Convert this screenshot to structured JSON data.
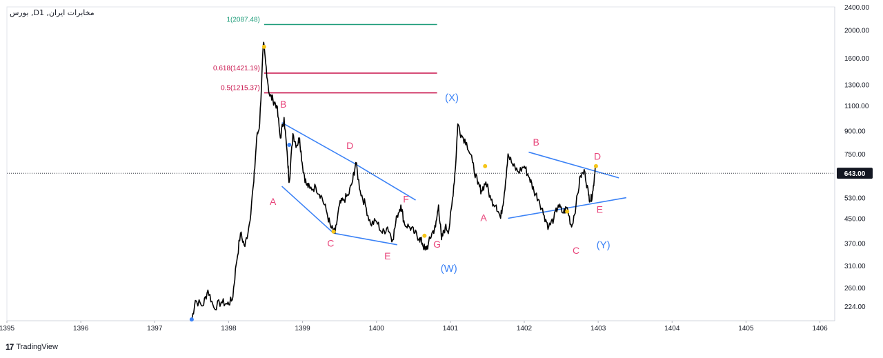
{
  "header": {
    "title": "بورس ,Dمخابرات ایران, 1"
  },
  "brand": {
    "logo": "17",
    "name": "TradingView"
  },
  "colors": {
    "price_line": "#000000",
    "trendline": "#3b82f6",
    "wave_label": "#e8447a",
    "degree_label": "#3b82f6",
    "fib_1": "#1f9d7a",
    "fib_other": "#c8104a",
    "marker": "#f5c518",
    "current_price_bg": "#131722"
  },
  "chart_data": {
    "type": "line",
    "title": "",
    "xlabel": "",
    "ylabel": "",
    "y_scale": "log",
    "ylim": [
      200,
      2400
    ],
    "xlim": [
      1395,
      1406.2
    ],
    "x_ticks": [
      "1395",
      "1396",
      "1397",
      "1398",
      "1399",
      "1400",
      "1401",
      "1402",
      "1403",
      "1404",
      "1405",
      "1406"
    ],
    "y_ticks": [
      "2400.00",
      "2000.00",
      "1600.00",
      "1300.00",
      "1100.00",
      "900.00",
      "750.00",
      "630.00",
      "530.00",
      "450.00",
      "370.00",
      "310.00",
      "260.00",
      "224.00"
    ],
    "current_price": {
      "value": 643,
      "label": "643.00"
    },
    "series": [
      {
        "points": [
          [
            1397.5,
            200
          ],
          [
            1397.55,
            235
          ],
          [
            1397.65,
            225
          ],
          [
            1397.72,
            255
          ],
          [
            1397.8,
            222
          ],
          [
            1397.9,
            232
          ],
          [
            1397.98,
            228
          ],
          [
            1398.05,
            236
          ],
          [
            1398.1,
            310
          ],
          [
            1398.16,
            400
          ],
          [
            1398.22,
            360
          ],
          [
            1398.28,
            430
          ],
          [
            1398.34,
            600
          ],
          [
            1398.38,
            850
          ],
          [
            1398.42,
            950
          ],
          [
            1398.47,
            1800
          ],
          [
            1398.5,
            1550
          ],
          [
            1398.55,
            1200
          ],
          [
            1398.6,
            1150
          ],
          [
            1398.65,
            1100
          ],
          [
            1398.7,
            850
          ],
          [
            1398.75,
            1000
          ],
          [
            1398.8,
            700
          ],
          [
            1398.82,
            600
          ],
          [
            1398.87,
            880
          ],
          [
            1398.92,
            800
          ],
          [
            1398.96,
            850
          ],
          [
            1399.0,
            680
          ],
          [
            1399.05,
            590
          ],
          [
            1399.1,
            570
          ],
          [
            1399.18,
            575
          ],
          [
            1399.25,
            540
          ],
          [
            1399.32,
            480
          ],
          [
            1399.38,
            420
          ],
          [
            1399.44,
            400
          ],
          [
            1399.5,
            500
          ],
          [
            1399.55,
            520
          ],
          [
            1399.62,
            540
          ],
          [
            1399.68,
            610
          ],
          [
            1399.72,
            700
          ],
          [
            1399.78,
            560
          ],
          [
            1399.85,
            500
          ],
          [
            1399.92,
            430
          ],
          [
            1400.0,
            440
          ],
          [
            1400.08,
            400
          ],
          [
            1400.15,
            420
          ],
          [
            1400.22,
            380
          ],
          [
            1400.28,
            460
          ],
          [
            1400.33,
            500
          ],
          [
            1400.38,
            430
          ],
          [
            1400.45,
            420
          ],
          [
            1400.52,
            400
          ],
          [
            1400.58,
            385
          ],
          [
            1400.62,
            370
          ],
          [
            1400.66,
            350
          ],
          [
            1400.7,
            365
          ],
          [
            1400.75,
            400
          ],
          [
            1400.8,
            420
          ],
          [
            1400.84,
            500
          ],
          [
            1400.88,
            380
          ],
          [
            1400.93,
            420
          ],
          [
            1400.98,
            410
          ],
          [
            1401.02,
            500
          ],
          [
            1401.07,
            680
          ],
          [
            1401.1,
            950
          ],
          [
            1401.15,
            870
          ],
          [
            1401.22,
            820
          ],
          [
            1401.3,
            700
          ],
          [
            1401.37,
            590
          ],
          [
            1401.42,
            560
          ],
          [
            1401.48,
            600
          ],
          [
            1401.55,
            520
          ],
          [
            1401.62,
            500
          ],
          [
            1401.68,
            450
          ],
          [
            1401.73,
            550
          ],
          [
            1401.78,
            750
          ],
          [
            1401.85,
            680
          ],
          [
            1401.92,
            650
          ],
          [
            1402.0,
            680
          ],
          [
            1402.07,
            620
          ],
          [
            1402.13,
            560
          ],
          [
            1402.2,
            520
          ],
          [
            1402.27,
            460
          ],
          [
            1402.33,
            420
          ],
          [
            1402.4,
            450
          ],
          [
            1402.46,
            500
          ],
          [
            1402.52,
            470
          ],
          [
            1402.58,
            490
          ],
          [
            1402.64,
            420
          ],
          [
            1402.7,
            500
          ],
          [
            1402.76,
            630
          ],
          [
            1402.82,
            650
          ],
          [
            1402.87,
            540
          ],
          [
            1402.9,
            520
          ],
          [
            1402.93,
            560
          ],
          [
            1402.96,
            680
          ]
        ]
      }
    ],
    "trendlines": [
      {
        "from": [
          1398.72,
          960
        ],
        "to": [
          1399.68,
          700
        ]
      },
      {
        "from": [
          1399.68,
          700
        ],
        "to": [
          1400.53,
          520
        ]
      },
      {
        "from": [
          1398.72,
          580
        ],
        "to": [
          1399.42,
          400
        ]
      },
      {
        "from": [
          1399.42,
          400
        ],
        "to": [
          1400.28,
          365
        ]
      },
      {
        "from": [
          1402.06,
          760
        ],
        "to": [
          1403.28,
          620
        ]
      },
      {
        "from": [
          1401.78,
          450
        ],
        "to": [
          1403.38,
          530
        ]
      }
    ],
    "fib_levels": [
      {
        "label": "1(2087.48)",
        "value": 2087.48,
        "x1": 1398.48,
        "x2": 1400.82,
        "color_key": "fib_1"
      },
      {
        "label": "0.618(1421.19)",
        "value": 1421.19,
        "x1": 1398.48,
        "x2": 1400.82,
        "color_key": "fib_other"
      },
      {
        "label": "0.5(1215.37)",
        "value": 1215.37,
        "x1": 1398.48,
        "x2": 1400.82,
        "color_key": "fib_other"
      }
    ],
    "wave_labels": [
      {
        "text": "B",
        "x": 1398.74,
        "y": 1080
      },
      {
        "text": "A",
        "x": 1398.6,
        "y": 500
      },
      {
        "text": "D",
        "x": 1399.64,
        "y": 780
      },
      {
        "text": "C",
        "x": 1399.38,
        "y": 360
      },
      {
        "text": "F",
        "x": 1400.4,
        "y": 510
      },
      {
        "text": "E",
        "x": 1400.15,
        "y": 325
      },
      {
        "text": "G",
        "x": 1400.82,
        "y": 357
      },
      {
        "text": "A",
        "x": 1401.45,
        "y": 440
      },
      {
        "text": "B",
        "x": 1402.16,
        "y": 800
      },
      {
        "text": "C",
        "x": 1402.7,
        "y": 340
      },
      {
        "text": "D",
        "x": 1402.99,
        "y": 715
      },
      {
        "text": "E",
        "x": 1403.02,
        "y": 470
      }
    ],
    "degree_labels": [
      {
        "text": "(X)",
        "x": 1401.02,
        "y": 1140
      },
      {
        "text": "(W)",
        "x": 1400.98,
        "y": 295
      },
      {
        "text": "(Y)",
        "x": 1403.07,
        "y": 355
      }
    ],
    "markers": [
      {
        "x": 1398.48,
        "y": 1750,
        "color_key": "marker"
      },
      {
        "x": 1398.82,
        "y": 805,
        "color_key": "degree_label"
      },
      {
        "x": 1399.42,
        "y": 405,
        "color_key": "marker"
      },
      {
        "x": 1400.65,
        "y": 392,
        "color_key": "marker"
      },
      {
        "x": 1401.47,
        "y": 680,
        "color_key": "marker"
      },
      {
        "x": 1402.58,
        "y": 475,
        "color_key": "marker"
      },
      {
        "x": 1402.97,
        "y": 680,
        "color_key": "marker"
      },
      {
        "x": 1397.5,
        "y": 202,
        "color_key": "degree_label"
      }
    ]
  }
}
